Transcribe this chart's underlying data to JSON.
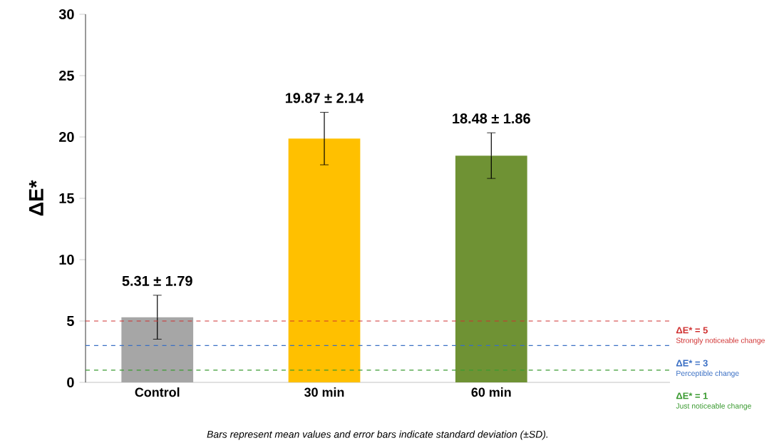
{
  "chart_data": {
    "type": "bar",
    "ylabel": "ΔE*",
    "categories": [
      "Control",
      "30 min",
      "60 min"
    ],
    "values": [
      5.31,
      19.87,
      18.48
    ],
    "errors": [
      1.79,
      2.14,
      1.86
    ],
    "value_labels": [
      "5.31 ± 1.79",
      "19.87 ± 2.14",
      "18.48 ± 1.86"
    ],
    "colors": [
      "#a6a6a6",
      "#ffc000",
      "#6f9234"
    ],
    "ylim": [
      0,
      30
    ],
    "yticks": [
      0,
      5,
      10,
      15,
      20,
      25,
      30
    ],
    "ref_lines": [
      {
        "axis": "y",
        "value": 5,
        "label": "ΔE* = 5",
        "color": "#d03030",
        "line_style": "dashed"
      },
      {
        "axis": "y",
        "value": 3,
        "label": "ΔE* = 3",
        "color": "#3a6fc4",
        "line_style": "dashed"
      },
      {
        "axis": "y",
        "value": 1,
        "label": "ΔE* = 1",
        "color": "#3a9a30",
        "line_style": "dashed"
      }
    ],
    "annotations": [
      "Strongly noticeable change",
      "Perceptible change",
      "Just noticeable change",
      "Bars represent mean values and error bars indicate standard deviation (±SD)."
    ]
  }
}
